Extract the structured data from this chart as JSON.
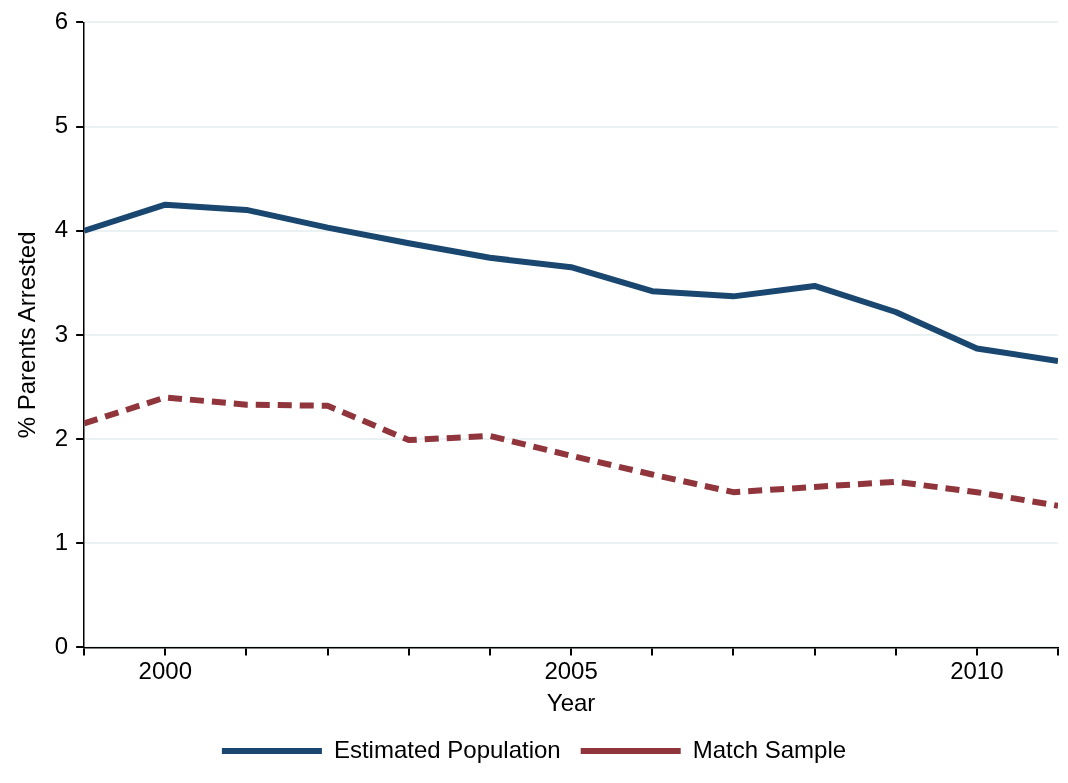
{
  "chart_data": {
    "type": "line",
    "xlabel": "Year",
    "ylabel": "% Parents Arrested",
    "x": [
      1999,
      2000,
      2001,
      2002,
      2003,
      2004,
      2005,
      2006,
      2007,
      2008,
      2009,
      2010,
      2011
    ],
    "series": [
      {
        "name": "Estimated Population",
        "color": "#1a476f",
        "line_style": "solid",
        "values": [
          4.0,
          4.25,
          4.2,
          4.03,
          3.88,
          3.74,
          3.65,
          3.42,
          3.37,
          3.47,
          3.22,
          2.87,
          2.75
        ]
      },
      {
        "name": "Match Sample",
        "color": "#90353b",
        "line_style": "dashed",
        "values": [
          2.15,
          2.4,
          2.33,
          2.32,
          1.99,
          2.03,
          1.84,
          1.66,
          1.49,
          1.54,
          1.59,
          1.49,
          1.36
        ]
      }
    ],
    "xlim": [
      1999,
      2011
    ],
    "xticks": [
      {
        "value": 1999,
        "label": null
      },
      2000,
      {
        "value": 2001,
        "label": null
      },
      {
        "value": 2002,
        "label": null
      },
      {
        "value": 2003,
        "label": null
      },
      {
        "value": 2004,
        "label": null
      },
      2005,
      {
        "value": 2006,
        "label": null
      },
      {
        "value": 2007,
        "label": null
      },
      {
        "value": 2008,
        "label": null
      },
      {
        "value": 2009,
        "label": null
      },
      2010,
      {
        "value": 2011,
        "label": null
      }
    ],
    "ylim": [
      0,
      6
    ],
    "yticks": [
      0,
      1,
      2,
      3,
      4,
      5,
      6
    ],
    "grid": "y",
    "legend": "bottom",
    "marker": "none"
  }
}
